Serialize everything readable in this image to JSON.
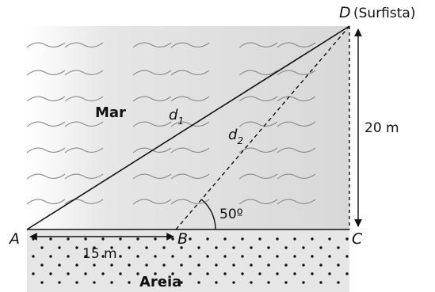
{
  "labels": {
    "point_a": "A",
    "point_b": "B",
    "point_c": "C",
    "point_d": "D",
    "surfista": "(Surfista)",
    "sea": "Mar",
    "sand": "Areia",
    "d1": "d",
    "d1_sub": "1",
    "d2": "d",
    "d2_sub": "2",
    "height": "20 m",
    "ab_length": "15 m",
    "angle": "50º"
  },
  "colors": {
    "sea_fill": "#d6d6d6",
    "sand_fill": "#e4e4e4",
    "lines": "#111111"
  }
}
